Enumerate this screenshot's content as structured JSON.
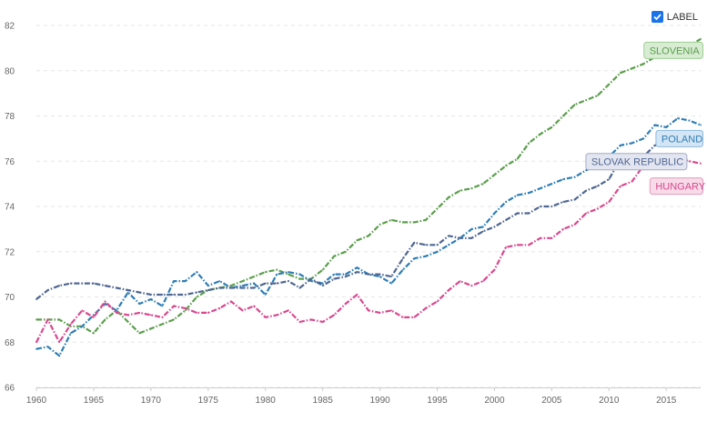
{
  "legend": {
    "label": "LABEL",
    "checked": true,
    "icon": "check-icon"
  },
  "chart_data": {
    "type": "line",
    "title": "",
    "xlabel": "",
    "ylabel": "",
    "xlim": [
      1960,
      2018
    ],
    "ylim": [
      66,
      82
    ],
    "xticks": [
      1960,
      1965,
      1970,
      1975,
      1980,
      1985,
      1990,
      1995,
      2000,
      2005,
      2010,
      2015
    ],
    "yticks": [
      66,
      68,
      70,
      72,
      74,
      76,
      78,
      80,
      82
    ],
    "grid": true,
    "x": [
      1960,
      1961,
      1962,
      1963,
      1964,
      1965,
      1966,
      1967,
      1968,
      1969,
      1970,
      1971,
      1972,
      1973,
      1974,
      1975,
      1976,
      1977,
      1978,
      1979,
      1980,
      1981,
      1982,
      1983,
      1984,
      1985,
      1986,
      1987,
      1988,
      1989,
      1990,
      1991,
      1992,
      1993,
      1994,
      1995,
      1996,
      1997,
      1998,
      1999,
      2000,
      2001,
      2002,
      2003,
      2004,
      2005,
      2006,
      2007,
      2008,
      2009,
      2010,
      2011,
      2012,
      2013,
      2014,
      2015,
      2016,
      2017,
      2018
    ],
    "series": [
      {
        "name": "SLOVENIA",
        "color": "#5a9e4b",
        "labelBg": "#d8ecd3",
        "labelBorder": "#9fcf94",
        "values": [
          69.0,
          69.0,
          69.0,
          68.7,
          68.7,
          68.4,
          69.0,
          69.4,
          68.9,
          68.4,
          68.6,
          68.8,
          69.0,
          69.4,
          70.0,
          70.3,
          70.4,
          70.5,
          70.7,
          70.9,
          71.1,
          71.2,
          71.0,
          70.8,
          70.8,
          71.2,
          71.8,
          72.0,
          72.5,
          72.7,
          73.2,
          73.4,
          73.3,
          73.3,
          73.4,
          73.9,
          74.4,
          74.7,
          74.8,
          75.0,
          75.4,
          75.8,
          76.1,
          76.8,
          77.2,
          77.5,
          78.0,
          78.5,
          78.7,
          78.9,
          79.4,
          79.9,
          80.1,
          80.3,
          80.6,
          80.9,
          81.1,
          81.1,
          81.4
        ]
      },
      {
        "name": "POLAND",
        "color": "#2e7db5",
        "labelBg": "#d4e6f5",
        "labelBorder": "#8ab8dd",
        "values": [
          67.7,
          67.8,
          67.4,
          68.4,
          68.7,
          69.2,
          69.7,
          69.4,
          70.2,
          69.7,
          69.9,
          69.6,
          70.7,
          70.7,
          71.1,
          70.5,
          70.7,
          70.4,
          70.5,
          70.6,
          70.1,
          71.0,
          71.1,
          71.0,
          70.7,
          70.6,
          71.0,
          71.0,
          71.3,
          71.0,
          70.9,
          70.6,
          71.2,
          71.7,
          71.8,
          72.0,
          72.3,
          72.6,
          73.0,
          73.1,
          73.7,
          74.2,
          74.5,
          74.6,
          74.8,
          75.0,
          75.2,
          75.3,
          75.6,
          75.8,
          76.2,
          76.7,
          76.8,
          77.0,
          77.6,
          77.5,
          77.9,
          77.8,
          77.6
        ]
      },
      {
        "name": "SLOVAK REPUBLIC",
        "color": "#4e6691",
        "labelBg": "#e3e6f1",
        "labelBorder": "#a3acc8",
        "values": [
          69.9,
          70.3,
          70.5,
          70.6,
          70.6,
          70.6,
          70.5,
          70.4,
          70.3,
          70.2,
          70.1,
          70.1,
          70.1,
          70.1,
          70.2,
          70.3,
          70.4,
          70.4,
          70.4,
          70.4,
          70.6,
          70.6,
          70.7,
          70.4,
          70.8,
          70.5,
          70.8,
          70.9,
          71.1,
          71.0,
          71.0,
          70.9,
          71.7,
          72.4,
          72.3,
          72.3,
          72.7,
          72.6,
          72.6,
          72.9,
          73.1,
          73.4,
          73.7,
          73.7,
          74.0,
          74.0,
          74.2,
          74.3,
          74.7,
          74.9,
          75.2,
          76.1,
          75.9,
          76.2,
          76.7,
          76.8,
          77.3,
          77.3,
          77.2
        ]
      },
      {
        "name": "HUNGARY",
        "color": "#d9478e",
        "labelBg": "#f7dbe8",
        "labelBorder": "#e39bbf",
        "values": [
          68.0,
          69.0,
          68.0,
          68.8,
          69.4,
          69.1,
          69.8,
          69.3,
          69.2,
          69.3,
          69.2,
          69.1,
          69.6,
          69.5,
          69.3,
          69.3,
          69.5,
          69.8,
          69.4,
          69.6,
          69.1,
          69.2,
          69.4,
          68.9,
          69.0,
          68.9,
          69.2,
          69.7,
          70.1,
          69.4,
          69.3,
          69.4,
          69.1,
          69.1,
          69.5,
          69.8,
          70.3,
          70.7,
          70.5,
          70.7,
          71.2,
          72.2,
          72.3,
          72.3,
          72.6,
          72.6,
          73.0,
          73.2,
          73.7,
          73.9,
          74.2,
          74.9,
          75.1,
          75.8,
          76.0,
          75.9,
          76.2,
          76.0,
          75.9
        ]
      }
    ]
  }
}
